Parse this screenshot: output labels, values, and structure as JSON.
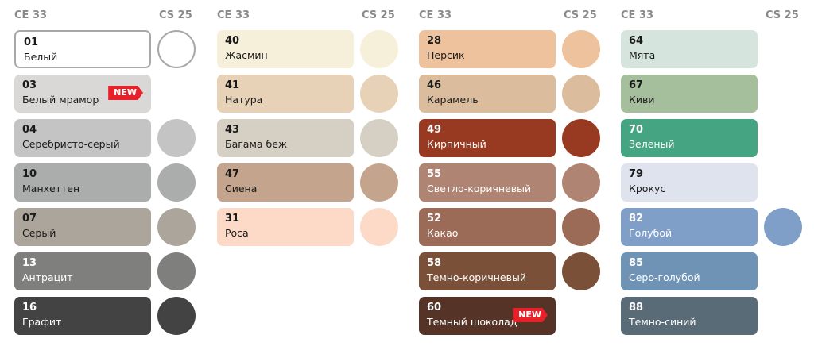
{
  "headers": {
    "ce": "CE 33",
    "cs": "CS 25"
  },
  "new_label": "NEW",
  "columns": [
    {
      "items": [
        {
          "code": "01",
          "name": "Белый",
          "color": "#ffffff",
          "text": "#1a1a1a",
          "circle": true,
          "border": true
        },
        {
          "code": "03",
          "name": "Белый мрамор",
          "color": "#d9d8d6",
          "text": "#1a1a1a",
          "circle": false,
          "is_new": true
        },
        {
          "code": "04",
          "name": "Серебристо-серый",
          "color": "#c4c4c4",
          "text": "#1a1a1a",
          "circle": true
        },
        {
          "code": "10",
          "name": "Манхеттен",
          "color": "#abadad",
          "text": "#1a1a1a",
          "circle": true
        },
        {
          "code": "07",
          "name": "Серый",
          "color": "#aca59c",
          "text": "#1a1a1a",
          "circle": true
        },
        {
          "code": "13",
          "name": "Антрацит",
          "color": "#7f7f7d",
          "text": "#ffffff",
          "circle": true
        },
        {
          "code": "16",
          "name": "Графит",
          "color": "#424342",
          "text": "#ffffff",
          "circle": true
        }
      ]
    },
    {
      "items": [
        {
          "code": "40",
          "name": "Жасмин",
          "color": "#f6efda",
          "text": "#1a1a1a",
          "circle": true
        },
        {
          "code": "41",
          "name": "Натура",
          "color": "#e8d2b7",
          "text": "#1a1a1a",
          "circle": true
        },
        {
          "code": "43",
          "name": "Багама беж",
          "color": "#d6d0c4",
          "text": "#1a1a1a",
          "circle": true
        },
        {
          "code": "47",
          "name": "Сиена",
          "color": "#c4a48c",
          "text": "#1a1a1a",
          "circle": true
        },
        {
          "code": "31",
          "name": "Роса",
          "color": "#fcdac7",
          "text": "#1a1a1a",
          "circle": true
        }
      ]
    },
    {
      "items": [
        {
          "code": "28",
          "name": "Персик",
          "color": "#eec29c",
          "text": "#1a1a1a",
          "circle": true
        },
        {
          "code": "46",
          "name": "Карамель",
          "color": "#dbbc9c",
          "text": "#1a1a1a",
          "circle": true
        },
        {
          "code": "49",
          "name": "Кирпичный",
          "color": "#983a22",
          "text": "#ffffff",
          "circle": true
        },
        {
          "code": "55",
          "name": "Светло-коричневый",
          "color": "#b08472",
          "text": "#ffffff",
          "circle": true
        },
        {
          "code": "52",
          "name": "Какао",
          "color": "#9c6b57",
          "text": "#ffffff",
          "circle": true
        },
        {
          "code": "58",
          "name": "Темно-коричневый",
          "color": "#7a5038",
          "text": "#ffffff",
          "circle": true
        },
        {
          "code": "60",
          "name": "Темный шоколад",
          "color": "#553427",
          "text": "#ffffff",
          "circle": false,
          "is_new": true
        }
      ]
    },
    {
      "items": [
        {
          "code": "64",
          "name": "Мята",
          "color": "#d5e5de",
          "text": "#1a1a1a",
          "circle": false
        },
        {
          "code": "67",
          "name": "Киви",
          "color": "#a5bf9d",
          "text": "#1a1a1a",
          "circle": false
        },
        {
          "code": "70",
          "name": "Зеленый",
          "color": "#45a582",
          "text": "#ffffff",
          "circle": false
        },
        {
          "code": "79",
          "name": "Крокус",
          "color": "#dee3ed",
          "text": "#1a1a1a",
          "circle": false
        },
        {
          "code": "82",
          "name": "Голубой",
          "color": "#7f9fc8",
          "text": "#ffffff",
          "circle": true
        },
        {
          "code": "85",
          "name": "Серо-голубой",
          "color": "#6f93b4",
          "text": "#ffffff",
          "circle": false
        },
        {
          "code": "88",
          "name": "Темно-синий",
          "color": "#5a6b78",
          "text": "#ffffff",
          "circle": false
        }
      ]
    }
  ]
}
